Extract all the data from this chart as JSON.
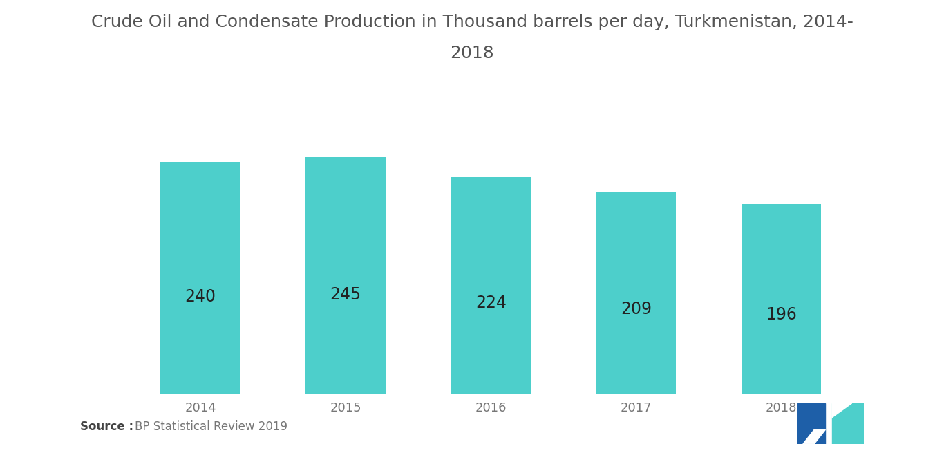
{
  "title_line1": "Crude Oil and Condensate Production in Thousand barrels per day, Turkmenistan, 2014-",
  "title_line2": "2018",
  "categories": [
    "2014",
    "2015",
    "2016",
    "2017",
    "2018"
  ],
  "values": [
    240,
    245,
    224,
    209,
    196
  ],
  "bar_color": "#4DCFCB",
  "label_color": "#222222",
  "background_color": "#ffffff",
  "bar_label_fontsize": 17,
  "title_fontsize": 18,
  "tick_fontsize": 13,
  "ylim": [
    0,
    290
  ],
  "bar_width": 0.55
}
